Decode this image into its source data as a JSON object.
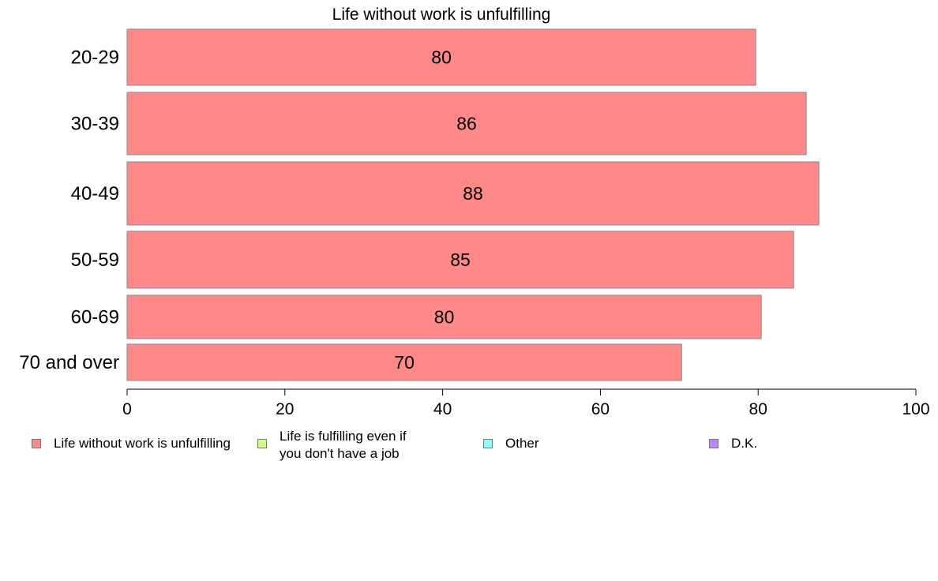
{
  "chart_data": {
    "type": "bar",
    "orientation": "horizontal",
    "title": "Life without work is unfulfilling",
    "categories": [
      "20-29",
      "30-39",
      "40-49",
      "50-59",
      "60-69",
      "70 and over"
    ],
    "series": [
      {
        "name": "Life without work is unfulfilling",
        "color": "#ff8888",
        "values": [
          79.7,
          86.1,
          87.7,
          84.5,
          80.4,
          70.3
        ],
        "labels": [
          "80",
          "86",
          "88",
          "85",
          "80",
          "70"
        ]
      }
    ],
    "xlim": [
      0,
      100
    ],
    "xticks": [
      "0",
      "20",
      "40",
      "60",
      "80",
      "100"
    ],
    "xlabel": "",
    "ylabel": "",
    "grid": false,
    "legend_position": "bottom"
  },
  "legend": [
    {
      "label": "Life without work is unfulfilling",
      "color": "#ff8888"
    },
    {
      "label": "Life is fulfilling even if\nyou don't have a job",
      "color": "#ccff88"
    },
    {
      "label": "Other",
      "color": "#88ffff"
    },
    {
      "label": "D.K.",
      "color": "#bb88ff"
    }
  ]
}
